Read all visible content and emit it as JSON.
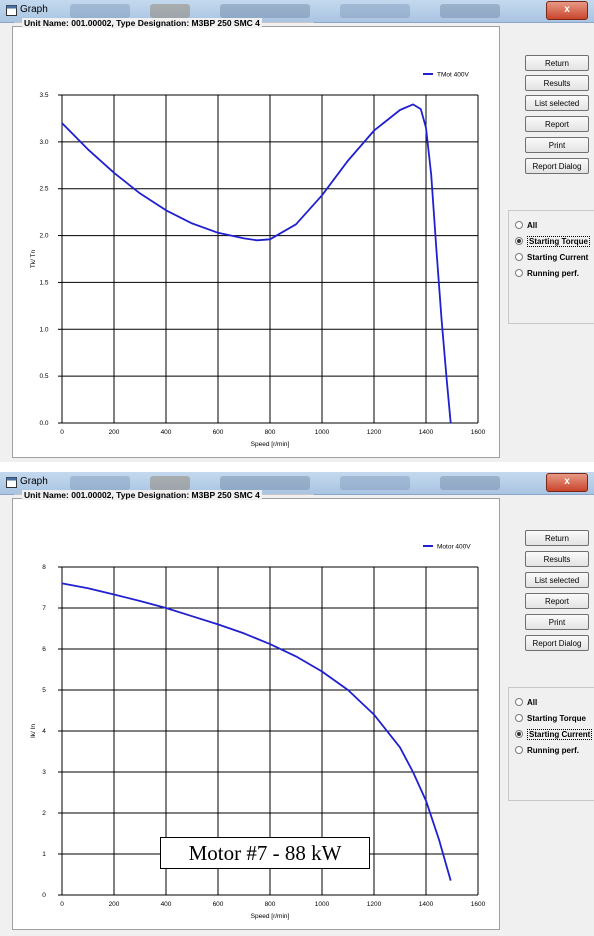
{
  "windows": [
    {
      "title": "Graph",
      "close_label": "x",
      "unit_label": "Unit Name: 001.00002,  Type Designation: M3BP 250 SMC 4",
      "buttons": [
        "Return",
        "Results",
        "List selected",
        "Report",
        "Print",
        "Report Dialog"
      ],
      "radio_options": [
        "All",
        "Starting Torque",
        "Starting Current",
        "Running perf."
      ],
      "selected_option": "Starting Torque",
      "chart_data": {
        "type": "line",
        "xlabel": "Speed [r/min]",
        "ylabel": "Tk/ Tn",
        "xlim": [
          0,
          1600
        ],
        "ylim": [
          0,
          3.5
        ],
        "x_ticks": [
          "0",
          "200",
          "400",
          "600",
          "800",
          "1000",
          "1200",
          "1400",
          "1600"
        ],
        "y_ticks": [
          "0.0",
          "0.5",
          "1.0",
          "1.5",
          "2.0",
          "2.5",
          "3.0",
          "3.5"
        ],
        "grid": true,
        "legend_position": "top-right",
        "series": [
          {
            "name": "TMot 400V",
            "color": "#2020d0",
            "x": [
              0,
              100,
              200,
              300,
              400,
              500,
              600,
              700,
              750,
              800,
              900,
              1000,
              1100,
              1200,
              1300,
              1350,
              1380,
              1400,
              1420,
              1440,
              1460,
              1480,
              1495
            ],
            "y": [
              3.2,
              2.92,
              2.67,
              2.45,
              2.27,
              2.13,
              2.03,
              1.97,
              1.95,
              1.96,
              2.12,
              2.43,
              2.8,
              3.12,
              3.34,
              3.4,
              3.35,
              3.15,
              2.65,
              1.85,
              1.1,
              0.45,
              0.0
            ]
          }
        ]
      }
    },
    {
      "title": "Graph",
      "close_label": "x",
      "unit_label": "Unit Name: 001.00002,  Type Designation: M3BP 250 SMC 4",
      "buttons": [
        "Return",
        "Results",
        "List selected",
        "Report",
        "Print",
        "Report Dialog"
      ],
      "radio_options": [
        "All",
        "Starting Torque",
        "Starting Current",
        "Running perf."
      ],
      "selected_option": "Starting Current",
      "chart_data": {
        "type": "line",
        "xlabel": "Speed [r/min]",
        "ylabel": "Ik/ In",
        "xlim": [
          0,
          1600
        ],
        "ylim": [
          0,
          8
        ],
        "x_ticks": [
          "0",
          "200",
          "400",
          "600",
          "800",
          "1000",
          "1200",
          "1400",
          "1600"
        ],
        "y_ticks": [
          "0",
          "1",
          "2",
          "3",
          "4",
          "5",
          "6",
          "7",
          "8"
        ],
        "grid": true,
        "legend_position": "top-right",
        "series": [
          {
            "name": "Motor 400V",
            "color": "#2020d0",
            "x": [
              0,
              100,
              200,
              300,
              400,
              500,
              600,
              700,
              800,
              900,
              1000,
              1100,
              1200,
              1300,
              1350,
              1400,
              1450,
              1495
            ],
            "y": [
              7.6,
              7.48,
              7.33,
              7.17,
              7.0,
              6.8,
              6.6,
              6.38,
              6.12,
              5.82,
              5.45,
              5.0,
              4.4,
              3.6,
              3.0,
              2.3,
              1.35,
              0.35
            ]
          }
        ]
      }
    }
  ],
  "caption": "Motor #7 - 88 kW"
}
